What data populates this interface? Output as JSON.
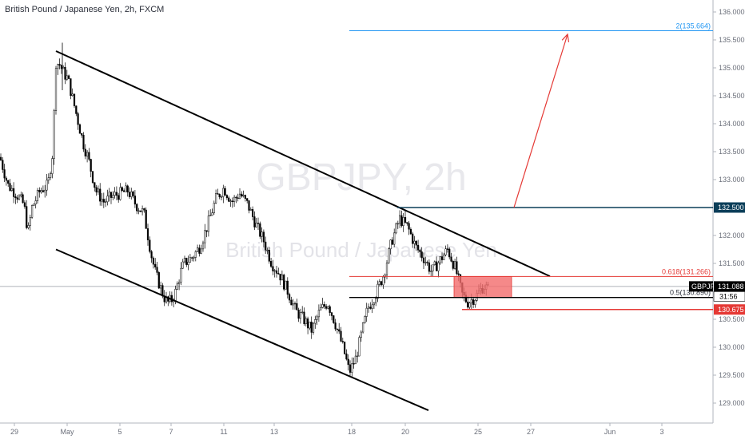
{
  "chart_data": {
    "type": "candlestick",
    "title": "British Pound / Japanese Yen, 2h, FXCM",
    "watermark": {
      "ticker": "GBPJPY, 2h",
      "name": "British Pound / Japanese Yen"
    },
    "ylim": [
      128.75,
      136.2
    ],
    "xlim": [
      0,
      932
    ],
    "y_ticks": [
      "129.000",
      "129.500",
      "130.000",
      "130.500",
      "131.000",
      "131.500",
      "132.000",
      "132.500",
      "133.000",
      "133.500",
      "134.000",
      "134.500",
      "135.000",
      "135.500",
      "136.000"
    ],
    "x_ticks": [
      {
        "label": "29",
        "x": 18
      },
      {
        "label": "May",
        "x": 84
      },
      {
        "label": "5",
        "x": 150
      },
      {
        "label": "7",
        "x": 214
      },
      {
        "label": "11",
        "x": 280
      },
      {
        "label": "13",
        "x": 343
      },
      {
        "label": "18",
        "x": 440
      },
      {
        "label": "20",
        "x": 507
      },
      {
        "label": "25",
        "x": 598
      },
      {
        "label": "27",
        "x": 664
      },
      {
        "label": "Jun",
        "x": 763
      },
      {
        "label": "3",
        "x": 828
      }
    ],
    "price_path": [
      [
        0,
        133.4
      ],
      [
        10,
        132.9
      ],
      [
        20,
        132.75
      ],
      [
        30,
        132.55
      ],
      [
        35,
        132.05
      ],
      [
        40,
        132.5
      ],
      [
        50,
        132.8
      ],
      [
        60,
        132.9
      ],
      [
        66,
        133.5
      ],
      [
        70,
        135.1
      ],
      [
        75,
        135.05
      ],
      [
        80,
        134.9
      ],
      [
        85,
        134.8
      ],
      [
        90,
        134.5
      ],
      [
        95,
        134.2
      ],
      [
        100,
        133.9
      ],
      [
        105,
        133.6
      ],
      [
        110,
        133.4
      ],
      [
        115,
        133.1
      ],
      [
        120,
        132.8
      ],
      [
        130,
        132.6
      ],
      [
        140,
        132.7
      ],
      [
        150,
        132.75
      ],
      [
        160,
        132.8
      ],
      [
        170,
        132.55
      ],
      [
        180,
        132.4
      ],
      [
        185,
        132.0
      ],
      [
        190,
        131.6
      ],
      [
        195,
        131.3
      ],
      [
        200,
        131.1
      ],
      [
        205,
        130.9
      ],
      [
        210,
        130.8
      ],
      [
        215,
        130.85
      ],
      [
        220,
        131.0
      ],
      [
        225,
        131.3
      ],
      [
        230,
        131.5
      ],
      [
        240,
        131.6
      ],
      [
        250,
        131.8
      ],
      [
        260,
        132.2
      ],
      [
        270,
        132.65
      ],
      [
        280,
        132.85
      ],
      [
        290,
        132.6
      ],
      [
        300,
        132.75
      ],
      [
        310,
        132.55
      ],
      [
        320,
        132.2
      ],
      [
        330,
        131.9
      ],
      [
        340,
        131.5
      ],
      [
        350,
        131.3
      ],
      [
        360,
        131.0
      ],
      [
        370,
        130.65
      ],
      [
        380,
        130.5
      ],
      [
        390,
        130.3
      ],
      [
        400,
        130.65
      ],
      [
        410,
        130.8
      ],
      [
        420,
        130.4
      ],
      [
        430,
        129.95
      ],
      [
        437,
        129.55
      ],
      [
        445,
        129.8
      ],
      [
        450,
        130.1
      ],
      [
        460,
        130.7
      ],
      [
        470,
        130.95
      ],
      [
        480,
        131.3
      ],
      [
        490,
        131.9
      ],
      [
        500,
        132.3
      ],
      [
        510,
        132.15
      ],
      [
        520,
        131.8
      ],
      [
        530,
        131.6
      ],
      [
        540,
        131.35
      ],
      [
        550,
        131.55
      ],
      [
        560,
        131.75
      ],
      [
        570,
        131.4
      ],
      [
        578,
        130.95
      ],
      [
        585,
        130.8
      ],
      [
        595,
        130.9
      ],
      [
        605,
        131.1
      ],
      [
        612,
        131.02
      ]
    ],
    "horizontal_levels": [
      {
        "value": 135.664,
        "label": "2(135.664)",
        "color": "#2196f3"
      },
      {
        "value": 132.5,
        "label": "132.500",
        "color": "#0b3e59"
      },
      {
        "value": 131.266,
        "label": "0.618(131.266)",
        "color": "#e53935"
      },
      {
        "value": 130.89,
        "label": "0.5(130.890)",
        "color": "#000000"
      },
      {
        "value": 130.675,
        "label": "130.675",
        "color": "#e53935"
      }
    ],
    "symbol_tag": {
      "symbol": "GBPJPY",
      "price": "131.088",
      "countdown": "31:56"
    },
    "zone": {
      "x1": 568,
      "x2": 640,
      "top": 131.266,
      "bottom": 130.89,
      "color": "#f36b6b"
    },
    "channel_lines": [
      {
        "from": [
          70,
          135.3
        ],
        "to": [
          688,
          131.27
        ]
      },
      {
        "from": [
          70,
          131.75
        ],
        "to": [
          536,
          128.87
        ]
      }
    ],
    "arrow": {
      "from": [
        643,
        132.5
      ],
      "to": [
        710,
        135.6
      ],
      "color": "#e53935"
    }
  }
}
